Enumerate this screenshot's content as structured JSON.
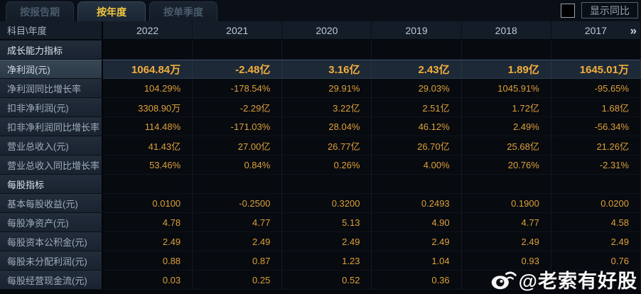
{
  "tabs": [
    {
      "name": "tab-report-period",
      "label": "按报告期",
      "active": false
    },
    {
      "name": "tab-annual",
      "label": "按年度",
      "active": true
    },
    {
      "name": "tab-quarterly",
      "label": "按单季度",
      "active": false
    }
  ],
  "controls": {
    "show_yoy_label": "显示同比",
    "show_yoy_checked": false
  },
  "table": {
    "corner_header": "科目\\年度",
    "year_columns": [
      "2022",
      "2021",
      "2020",
      "2019",
      "2018",
      "2017"
    ],
    "more_icon": "»",
    "rows": [
      {
        "type": "section",
        "label": "成长能力指标"
      },
      {
        "type": "data",
        "label": "净利润(元)",
        "highlight": true,
        "values": [
          "1064.84万",
          "-2.48亿",
          "3.16亿",
          "2.43亿",
          "1.89亿",
          "1645.01万"
        ]
      },
      {
        "type": "data",
        "label": "净利润同比增长率",
        "values": [
          "104.29%",
          "-178.54%",
          "29.91%",
          "29.03%",
          "1045.91%",
          "-95.65%"
        ]
      },
      {
        "type": "data",
        "label": "扣非净利润(元)",
        "values": [
          "3308.90万",
          "-2.29亿",
          "3.22亿",
          "2.51亿",
          "1.72亿",
          "1.68亿"
        ]
      },
      {
        "type": "data",
        "label": "扣非净利润同比增长率",
        "values": [
          "114.48%",
          "-171.03%",
          "28.04%",
          "46.12%",
          "2.49%",
          "-56.34%"
        ]
      },
      {
        "type": "data",
        "label": "营业总收入(元)",
        "values": [
          "41.43亿",
          "27.00亿",
          "26.77亿",
          "26.70亿",
          "25.68亿",
          "21.26亿"
        ]
      },
      {
        "type": "data",
        "label": "营业总收入同比增长率",
        "values": [
          "53.46%",
          "0.84%",
          "0.26%",
          "4.00%",
          "20.76%",
          "-2.31%"
        ]
      },
      {
        "type": "section",
        "label": "每股指标"
      },
      {
        "type": "data",
        "label": "基本每股收益(元)",
        "values": [
          "0.0100",
          "-0.2500",
          "0.3200",
          "0.2493",
          "0.1900",
          "0.0200"
        ]
      },
      {
        "type": "data",
        "label": "每股净资产(元)",
        "values": [
          "4.78",
          "4.77",
          "5.13",
          "4.90",
          "4.77",
          "4.58"
        ]
      },
      {
        "type": "data",
        "label": "每股资本公积金(元)",
        "values": [
          "2.49",
          "2.49",
          "2.49",
          "2.49",
          "2.49",
          "2.49"
        ]
      },
      {
        "type": "data",
        "label": "每股未分配利润(元)",
        "values": [
          "0.88",
          "0.87",
          "1.23",
          "1.04",
          "0.93",
          "0.76"
        ]
      },
      {
        "type": "data",
        "label": "每股经营现金流(元)",
        "values": [
          "0.03",
          "0.25",
          "0.52",
          "0.36",
          "",
          ""
        ]
      }
    ]
  },
  "watermark": {
    "icon": "weibo-icon",
    "text": "@老索有好股"
  },
  "colors": {
    "value_gold": "#dda039",
    "highlight_gold": "#f2ae3d",
    "active_tab_gold": "#f2c63e",
    "row_highlight_bg": "#1d2937",
    "label_text": "#9fadba",
    "watermark": "#ffffff"
  }
}
